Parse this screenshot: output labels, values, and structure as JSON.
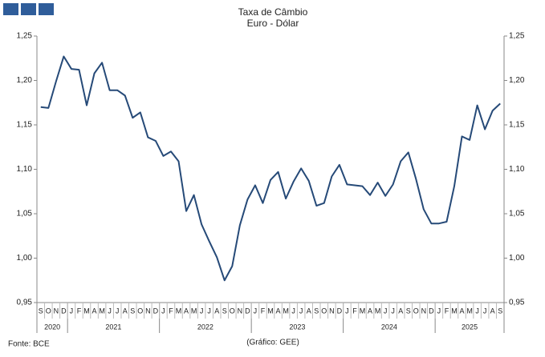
{
  "chart_data": {
    "type": "line",
    "title": "Taxa de Câmbio",
    "subtitle": "Euro - Dólar",
    "categories": [
      "S",
      "O",
      "N",
      "D",
      "J",
      "F",
      "M",
      "A",
      "M",
      "J",
      "J",
      "A",
      "S",
      "O",
      "N",
      "D",
      "J",
      "F",
      "M",
      "A",
      "M",
      "J",
      "J",
      "A",
      "S",
      "O",
      "N",
      "D",
      "J",
      "F",
      "M",
      "A",
      "M",
      "J",
      "J",
      "A",
      "S",
      "O",
      "N",
      "D",
      "J",
      "F",
      "M",
      "A",
      "M",
      "J",
      "J",
      "A",
      "S",
      "O",
      "N",
      "D",
      "J",
      "F",
      "M",
      "A",
      "M",
      "J",
      "J",
      "A",
      "S"
    ],
    "years": [
      "2020",
      "2021",
      "2022",
      "2023",
      "2024",
      "2025"
    ],
    "series": [
      {
        "name": "Euro - Dólar",
        "color": "#264a78",
        "values": [
          1.17,
          1.169,
          1.199,
          1.227,
          1.213,
          1.212,
          1.172,
          1.208,
          1.22,
          1.189,
          1.189,
          1.183,
          1.158,
          1.164,
          1.136,
          1.132,
          1.115,
          1.12,
          1.109,
          1.053,
          1.071,
          1.038,
          1.019,
          1.001,
          0.975,
          0.991,
          1.037,
          1.066,
          1.082,
          1.062,
          1.088,
          1.097,
          1.067,
          1.086,
          1.101,
          1.087,
          1.059,
          1.062,
          1.092,
          1.105,
          1.083,
          1.082,
          1.081,
          1.071,
          1.085,
          1.07,
          1.083,
          1.109,
          1.119,
          1.089,
          1.055,
          1.039,
          1.039,
          1.041,
          1.081,
          1.137,
          1.133,
          1.172,
          1.145,
          1.166,
          1.174
        ]
      }
    ],
    "ylim": [
      0.95,
      1.25
    ],
    "yticks": [
      {
        "value": 0.95,
        "label": "0,95"
      },
      {
        "value": 1.0,
        "label": "1,00"
      },
      {
        "value": 1.05,
        "label": "1,05"
      },
      {
        "value": 1.1,
        "label": "1,10"
      },
      {
        "value": 1.15,
        "label": "1,15"
      },
      {
        "value": 1.2,
        "label": "1,20"
      },
      {
        "value": 1.25,
        "label": "1,25"
      }
    ],
    "y2lim": [
      0.95,
      1.25
    ],
    "y2ticks": [
      {
        "value": 0.95,
        "label": "0,95"
      },
      {
        "value": 1.0,
        "label": "1,00"
      },
      {
        "value": 1.05,
        "label": "1,05"
      },
      {
        "value": 1.1,
        "label": "1,10"
      },
      {
        "value": 1.15,
        "label": "1,15"
      },
      {
        "value": 1.2,
        "label": "1,20"
      },
      {
        "value": 1.25,
        "label": "1,25"
      }
    ],
    "source": "Fonte: BCE",
    "credit": "(Gráfico: GEE)"
  }
}
